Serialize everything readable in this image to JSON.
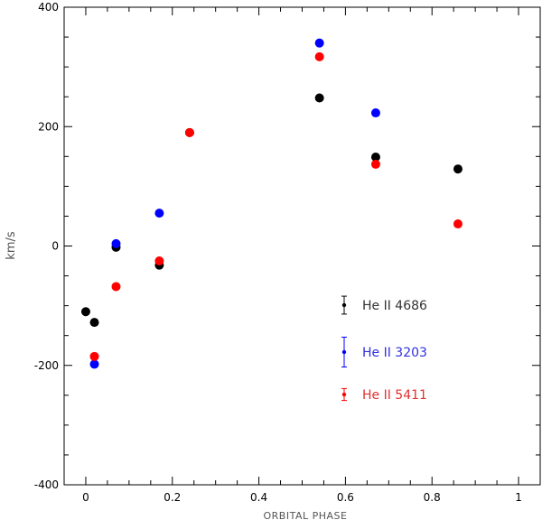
{
  "chart_data": {
    "type": "scatter",
    "title": "",
    "xlabel": "ORBITAL PHASE",
    "ylabel": "km/s",
    "xlim": [
      -0.05,
      1.05
    ],
    "ylim": [
      -400,
      400
    ],
    "x_ticks": [
      0,
      0.2,
      0.4,
      0.6,
      0.8,
      1
    ],
    "x_tick_labels": [
      "0",
      "0.2",
      "0.4",
      "0.6",
      "0.8",
      "1"
    ],
    "y_ticks": [
      -400,
      -200,
      0,
      200,
      400
    ],
    "y_tick_labels": [
      "-400",
      "-200",
      "0",
      "200",
      "400"
    ],
    "grid": false,
    "legend_position": "lower-right",
    "series": [
      {
        "name": "He II 4686",
        "color": "#000000",
        "points": [
          {
            "x": 0.0,
            "y": -110
          },
          {
            "x": 0.02,
            "y": -128
          },
          {
            "x": 0.07,
            "y": -2
          },
          {
            "x": 0.17,
            "y": -32
          },
          {
            "x": 0.24,
            "y": 190
          },
          {
            "x": 0.54,
            "y": 248
          },
          {
            "x": 0.67,
            "y": 149
          },
          {
            "x": 0.86,
            "y": 129
          }
        ],
        "error_bar": 15
      },
      {
        "name": "He II 3203",
        "color": "#0000ff",
        "points": [
          {
            "x": 0.02,
            "y": -198
          },
          {
            "x": 0.07,
            "y": 4
          },
          {
            "x": 0.17,
            "y": 55
          },
          {
            "x": 0.54,
            "y": 340
          },
          {
            "x": 0.67,
            "y": 223
          }
        ],
        "error_bar": 25
      },
      {
        "name": "He II 5411",
        "color": "#ff0000",
        "points": [
          {
            "x": 0.02,
            "y": -185
          },
          {
            "x": 0.07,
            "y": -68
          },
          {
            "x": 0.17,
            "y": -25
          },
          {
            "x": 0.24,
            "y": 190
          },
          {
            "x": 0.54,
            "y": 317
          },
          {
            "x": 0.67,
            "y": 137
          },
          {
            "x": 0.86,
            "y": 37
          }
        ],
        "error_bar": 10
      }
    ]
  }
}
